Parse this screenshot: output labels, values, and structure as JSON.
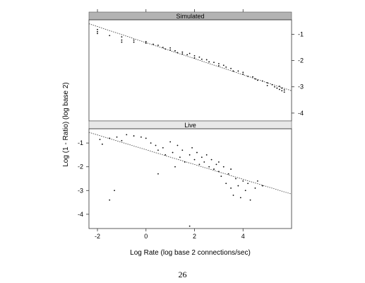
{
  "page_number": "26",
  "chart_data": {
    "type": "scatter",
    "xlabel": "Log Rate (log base 2 connections/sec)",
    "ylabel": "Log (1 - Ratio) (log base 2)",
    "xlim": [
      -2.35,
      6.0
    ],
    "x_ticks": [
      -2,
      0,
      2,
      4
    ],
    "grid": false,
    "panels": [
      {
        "name": "Simulated",
        "ylim": [
          -4.3,
          -0.45
        ],
        "y_ticks": [
          -1,
          -2,
          -3,
          -4
        ],
        "y_tick_side": "right",
        "fit_line": {
          "x": [
            -2.35,
            6.0
          ],
          "y": [
            -0.6,
            -3.15
          ]
        },
        "points": [
          [
            -2.0,
            -0.82
          ],
          [
            -2.0,
            -0.9
          ],
          [
            -2.0,
            -0.97
          ],
          [
            -1.5,
            -1.05
          ],
          [
            -1.0,
            -1.1
          ],
          [
            -1.0,
            -1.22
          ],
          [
            -1.0,
            -1.3
          ],
          [
            -0.5,
            -1.22
          ],
          [
            -0.5,
            -1.3
          ],
          [
            0.0,
            -1.28
          ],
          [
            0.0,
            -1.34
          ],
          [
            0.3,
            -1.38
          ],
          [
            0.5,
            -1.42
          ],
          [
            0.7,
            -1.5
          ],
          [
            0.8,
            -1.56
          ],
          [
            1.0,
            -1.52
          ],
          [
            1.0,
            -1.6
          ],
          [
            1.2,
            -1.63
          ],
          [
            1.3,
            -1.7
          ],
          [
            1.5,
            -1.68
          ],
          [
            1.5,
            -1.75
          ],
          [
            1.7,
            -1.78
          ],
          [
            1.8,
            -1.73
          ],
          [
            2.0,
            -1.82
          ],
          [
            2.0,
            -1.9
          ],
          [
            2.2,
            -1.87
          ],
          [
            2.3,
            -1.95
          ],
          [
            2.5,
            -1.97
          ],
          [
            2.6,
            -2.05
          ],
          [
            2.8,
            -2.07
          ],
          [
            3.0,
            -2.12
          ],
          [
            3.0,
            -2.2
          ],
          [
            3.2,
            -2.18
          ],
          [
            3.3,
            -2.25
          ],
          [
            3.5,
            -2.3
          ],
          [
            3.6,
            -2.4
          ],
          [
            3.8,
            -2.4
          ],
          [
            4.0,
            -2.52
          ],
          [
            4.0,
            -2.45
          ],
          [
            4.2,
            -2.6
          ],
          [
            4.4,
            -2.62
          ],
          [
            4.5,
            -2.7
          ],
          [
            4.6,
            -2.75
          ],
          [
            4.8,
            -2.78
          ],
          [
            5.0,
            -2.85
          ],
          [
            5.0,
            -2.95
          ],
          [
            5.2,
            -2.92
          ],
          [
            5.3,
            -3.0
          ],
          [
            5.4,
            -3.05
          ],
          [
            5.5,
            -3.1
          ],
          [
            5.5,
            -2.98
          ],
          [
            5.6,
            -3.15
          ],
          [
            5.6,
            -3.05
          ],
          [
            5.7,
            -3.12
          ],
          [
            5.7,
            -3.2
          ]
        ]
      },
      {
        "name": "Live",
        "ylim": [
          -4.6,
          -0.4
        ],
        "y_ticks": [
          -1,
          -2,
          -3,
          -4
        ],
        "y_tick_side": "left",
        "fit_line": {
          "x": [
            -2.35,
            6.0
          ],
          "y": [
            -0.55,
            -3.15
          ]
        },
        "points": [
          [
            -1.9,
            -0.85
          ],
          [
            -1.8,
            -1.05
          ],
          [
            -1.5,
            -0.8
          ],
          [
            -1.2,
            -0.75
          ],
          [
            -1.0,
            -0.9
          ],
          [
            -1.5,
            -3.4
          ],
          [
            -1.3,
            -3.0
          ],
          [
            -0.8,
            -0.65
          ],
          [
            -0.5,
            -0.7
          ],
          [
            -0.2,
            -0.75
          ],
          [
            0.0,
            -0.8
          ],
          [
            0.2,
            -1.0
          ],
          [
            0.4,
            -1.1
          ],
          [
            0.5,
            -1.3
          ],
          [
            0.7,
            -1.2
          ],
          [
            0.8,
            -1.5
          ],
          [
            1.0,
            -0.95
          ],
          [
            1.1,
            -1.4
          ],
          [
            1.3,
            -1.1
          ],
          [
            1.4,
            -1.6
          ],
          [
            1.5,
            -1.3
          ],
          [
            1.6,
            -1.8
          ],
          [
            1.8,
            -1.5
          ],
          [
            1.9,
            -1.2
          ],
          [
            2.0,
            -1.7
          ],
          [
            2.1,
            -1.4
          ],
          [
            2.2,
            -1.9
          ],
          [
            2.3,
            -1.6
          ],
          [
            2.4,
            -1.8
          ],
          [
            2.5,
            -1.5
          ],
          [
            2.6,
            -2.0
          ],
          [
            2.7,
            -1.7
          ],
          [
            2.8,
            -2.1
          ],
          [
            2.9,
            -1.9
          ],
          [
            3.0,
            -2.2
          ],
          [
            3.0,
            -1.8
          ],
          [
            3.1,
            -2.4
          ],
          [
            3.2,
            -2.0
          ],
          [
            3.3,
            -2.7
          ],
          [
            3.4,
            -2.3
          ],
          [
            3.5,
            -2.9
          ],
          [
            3.5,
            -2.1
          ],
          [
            3.6,
            -3.2
          ],
          [
            3.7,
            -2.5
          ],
          [
            3.8,
            -2.8
          ],
          [
            3.9,
            -3.3
          ],
          [
            4.0,
            -2.6
          ],
          [
            4.1,
            -3.0
          ],
          [
            4.2,
            -2.7
          ],
          [
            4.3,
            -3.4
          ],
          [
            4.5,
            -2.9
          ],
          [
            4.6,
            -2.6
          ],
          [
            4.8,
            -2.8
          ],
          [
            1.8,
            -4.5
          ],
          [
            0.5,
            -2.3
          ],
          [
            1.2,
            -2.0
          ]
        ]
      }
    ]
  }
}
